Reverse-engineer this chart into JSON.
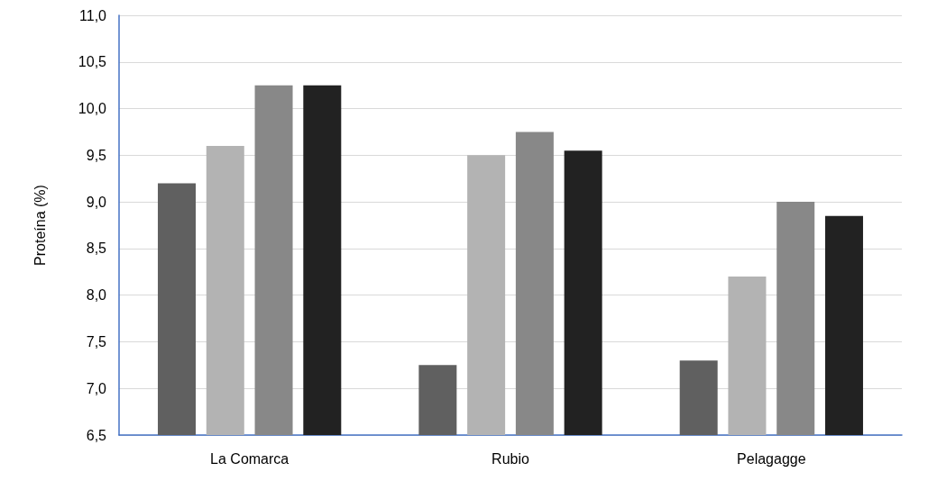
{
  "chart_data": {
    "type": "bar",
    "ylabel": "Proteína (%)",
    "categories": [
      "La Comarca",
      "Rubio",
      "Pelagagge"
    ],
    "series": [
      {
        "color": "#606060",
        "values": [
          9.2,
          7.25,
          7.3
        ]
      },
      {
        "color": "#b3b3b3",
        "values": [
          9.6,
          9.5,
          8.2
        ]
      },
      {
        "color": "#888888",
        "values": [
          10.25,
          9.75,
          9.0
        ]
      },
      {
        "color": "#222222",
        "values": [
          10.25,
          9.55,
          8.85
        ]
      }
    ],
    "ylim": [
      6.5,
      11
    ],
    "yticks": [
      {
        "value": 6.5,
        "label": "6,5"
      },
      {
        "value": 7,
        "label": "7,0"
      },
      {
        "value": 7.5,
        "label": "7,5"
      },
      {
        "value": 8,
        "label": "8,0"
      },
      {
        "value": 8.5,
        "label": "8,5"
      },
      {
        "value": 9,
        "label": "9,0"
      },
      {
        "value": 9.5,
        "label": "9,5"
      },
      {
        "value": 10,
        "label": "10,0"
      },
      {
        "value": 10.5,
        "label": "10,5"
      },
      {
        "value": 11,
        "label": "11,0"
      }
    ],
    "grid": "y"
  }
}
